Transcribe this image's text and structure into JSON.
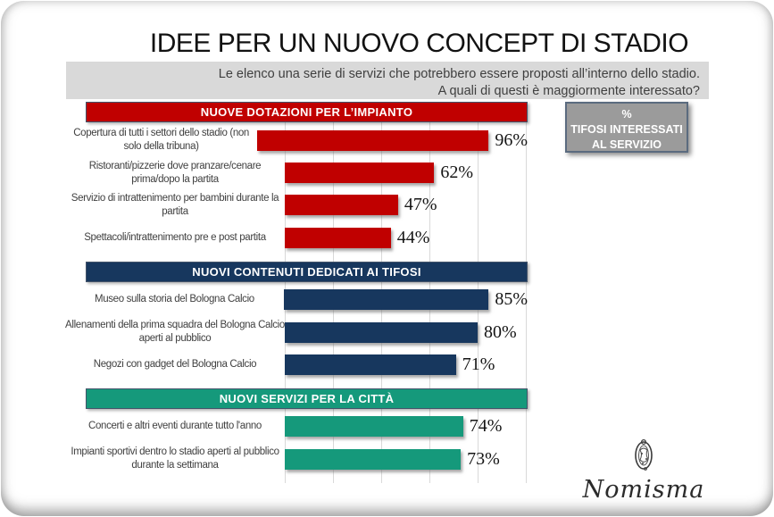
{
  "title": "IDEE PER UN NUOVO CONCEPT DI STADIO",
  "subtitle": {
    "line1": "Le elenco una serie di servizi che potrebbero essere proposti all’interno dello stadio.",
    "line2": "A quali di questi è maggiormente interessato?"
  },
  "legend_box": {
    "line1": "%",
    "line2": "TIFOSI INTERESSATI",
    "line3": "AL SERVIZIO"
  },
  "logo": {
    "text": "Nomisma"
  },
  "colors": {
    "red": "#C00000",
    "navy": "#17375E",
    "green": "#15997B",
    "header_border": "#44546A",
    "grid": "#D9D9D9",
    "label_text": "#404040",
    "subtitle_bg": "#D9D9D9",
    "legend_bg": "#9B9B9B"
  },
  "chart_data": {
    "type": "bar",
    "orientation": "horizontal",
    "unit": "%",
    "xlim": [
      0,
      100
    ],
    "gridline_interval": 20,
    "grid": true,
    "sections": [
      {
        "header": "NUOVE DOTAZIONI PER L’IMPIANTO",
        "color": "#C00000",
        "items": [
          {
            "label": "Copertura di tutti i settori dello stadio (non solo della tribuna)",
            "value": 96
          },
          {
            "label": "Ristoranti/pizzerie dove pranzare/cenare prima/dopo la partita",
            "value": 62
          },
          {
            "label": "Servizio di intrattenimento per bambini durante la partita",
            "value": 47
          },
          {
            "label": "Spettacoli/intrattenimento pre e post partita",
            "value": 44
          }
        ]
      },
      {
        "header": "NUOVI CONTENUTI DEDICATI AI TIFOSI",
        "color": "#17375E",
        "items": [
          {
            "label": "Museo sulla storia del Bologna Calcio",
            "value": 85
          },
          {
            "label": "Allenamenti della prima squadra del Bologna Calcio aperti al pubblico",
            "value": 80
          },
          {
            "label": "Negozi con gadget del Bologna Calcio",
            "value": 71
          }
        ]
      },
      {
        "header": "NUOVI SERVIZI PER LA CITTÀ",
        "color": "#15997B",
        "items": [
          {
            "label": "Concerti e altri eventi durante tutto l'anno",
            "value": 74
          },
          {
            "label": "Impianti sportivi dentro lo stadio aperti al pubblico durante la settimana",
            "value": 73
          }
        ]
      }
    ]
  }
}
